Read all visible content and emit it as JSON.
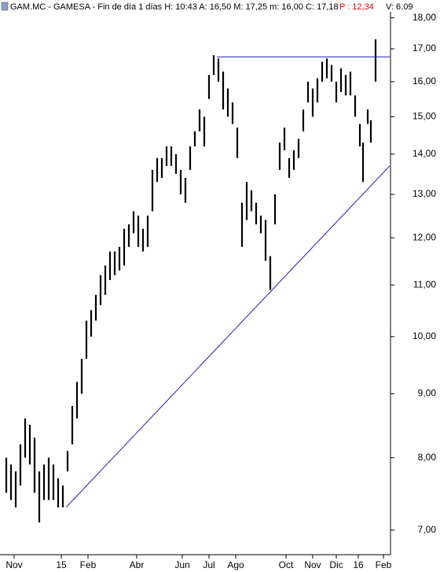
{
  "header": {
    "info": "GAM.MC - GAMESA - Fin de día 1 días H: 10:43 A: 16,50 M: 17,25 m: 16,00 C: 17,18",
    "p": "P : 12,34",
    "v": "V: 6.09"
  },
  "chart_data": {
    "type": "hilo",
    "color": "#000000",
    "log_scale": true,
    "x": [
      4,
      7,
      10,
      13,
      16,
      19,
      22,
      25,
      28,
      31,
      34,
      37,
      40,
      43,
      46,
      49,
      52,
      55,
      58,
      61,
      64,
      67,
      70,
      73,
      76,
      79,
      82,
      85,
      88,
      91,
      94,
      97,
      100,
      103,
      106,
      109,
      112,
      115,
      118,
      121,
      124,
      127,
      130,
      133,
      136,
      139,
      142,
      145,
      148,
      151,
      154,
      157,
      160,
      163,
      166,
      169,
      172,
      175,
      178,
      181,
      184,
      187,
      190,
      193,
      196,
      199,
      202,
      205,
      208,
      211,
      214,
      217,
      220,
      223,
      226,
      229,
      231,
      234,
      236,
      239
    ],
    "high": [
      8.0,
      7.9,
      7.8,
      8.2,
      8.6,
      8.5,
      8.3,
      7.8,
      7.9,
      8.0,
      7.9,
      7.7,
      7.6,
      8.1,
      8.8,
      9.2,
      9.6,
      10.3,
      10.5,
      10.8,
      11.2,
      11.4,
      11.7,
      11.7,
      11.8,
      12.2,
      12.3,
      12.6,
      12.5,
      12.2,
      12.5,
      13.6,
      13.9,
      13.9,
      14.2,
      14.2,
      14.0,
      13.6,
      13.4,
      14.2,
      14.6,
      15.2,
      15.0,
      16.2,
      16.8,
      16.7,
      16.3,
      15.8,
      15.4,
      14.7,
      12.8,
      13.3,
      13.1,
      12.8,
      12.5,
      12.4,
      11.6,
      13.0,
      14.3,
      14.7,
      13.9,
      14.1,
      14.4,
      15.2,
      16.0,
      15.8,
      16.1,
      16.6,
      16.7,
      16.5,
      16.0,
      16.4,
      16.2,
      16.3,
      15.6,
      14.8,
      14.3,
      15.2,
      14.9,
      17.3
    ],
    "low": [
      7.5,
      7.4,
      7.3,
      7.6,
      8.0,
      7.9,
      7.5,
      7.1,
      7.4,
      7.4,
      7.4,
      7.3,
      7.3,
      7.8,
      8.2,
      8.6,
      9.0,
      9.6,
      10.0,
      10.3,
      10.6,
      10.8,
      11.1,
      11.2,
      11.3,
      11.4,
      11.8,
      12.1,
      11.8,
      11.7,
      11.8,
      12.6,
      13.3,
      13.4,
      13.7,
      13.7,
      13.5,
      13.0,
      12.8,
      13.6,
      14.2,
      14.6,
      14.2,
      15.5,
      16.2,
      16.0,
      15.2,
      15.0,
      14.8,
      13.9,
      11.8,
      12.4,
      12.6,
      12.3,
      12.1,
      11.5,
      10.9,
      12.3,
      13.6,
      14.1,
      13.4,
      13.6,
      13.9,
      14.6,
      15.4,
      15.0,
      15.4,
      16.0,
      16.1,
      16.0,
      15.4,
      15.7,
      15.6,
      15.6,
      15.0,
      14.2,
      13.3,
      14.8,
      14.3,
      16.0
    ],
    "lines": [
      {
        "color": "#1f1fb4",
        "x": [
          138,
          248
        ],
        "y": [
          16.75,
          16.75
        ]
      },
      {
        "color": "#1f1fb4",
        "x": [
          42,
          248
        ],
        "y": [
          7.3,
          13.7
        ]
      }
    ],
    "xlim": [
      2.5,
      248.5
    ],
    "ylim": [
      6.69,
      18.2
    ],
    "xticks": [
      {
        "value": 9,
        "label": "Nov"
      },
      {
        "value": 39,
        "label": "15"
      },
      {
        "value": 56,
        "label": "Feb"
      },
      {
        "value": 87,
        "label": "Abr"
      },
      {
        "value": 116,
        "label": "Jun"
      },
      {
        "value": 133,
        "label": "Jul"
      },
      {
        "value": 150,
        "label": "Ago"
      },
      {
        "value": 182,
        "label": "Oct"
      },
      {
        "value": 199,
        "label": "Nov"
      },
      {
        "value": 214,
        "label": "Dic"
      },
      {
        "value": 228,
        "label": "16"
      },
      {
        "value": 244,
        "label": "Feb"
      }
    ],
    "yticks": [
      {
        "value": 7,
        "label": "7,00"
      },
      {
        "value": 8,
        "label": "8,00"
      },
      {
        "value": 9,
        "label": "9,00"
      },
      {
        "value": 10,
        "label": "10,00"
      },
      {
        "value": 11,
        "label": "11,00"
      },
      {
        "value": 12,
        "label": "12,00"
      },
      {
        "value": 13,
        "label": "13,00"
      },
      {
        "value": 14,
        "label": "14,00"
      },
      {
        "value": 15,
        "label": "15,00"
      },
      {
        "value": 16,
        "label": "16,00"
      },
      {
        "value": 17,
        "label": "17,00"
      },
      {
        "value": 18,
        "label": "18,00"
      }
    ]
  }
}
